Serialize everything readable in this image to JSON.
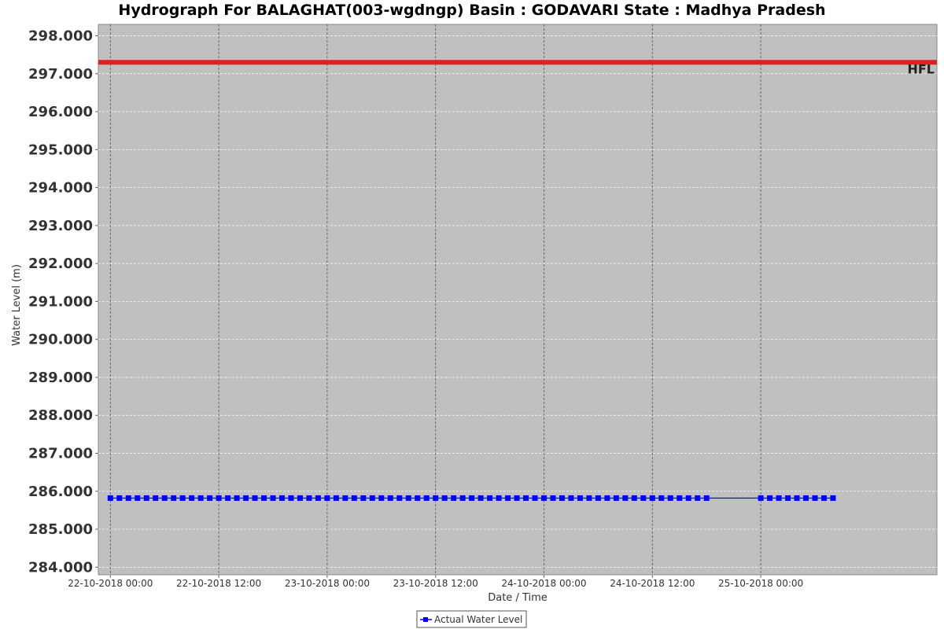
{
  "chart_data": {
    "type": "line",
    "title": "Hydrograph For BALAGHAT(003-wgdngp) Basin : GODAVARI State : Madhya Pradesh",
    "xlabel": "Date / Time",
    "ylabel": "Water Level (m)",
    "ylim": [
      283.8,
      298.3
    ],
    "y_ticks": [
      "284.000",
      "285.000",
      "286.000",
      "287.000",
      "288.000",
      "289.000",
      "290.000",
      "291.000",
      "292.000",
      "293.000",
      "294.000",
      "295.000",
      "296.000",
      "297.000",
      "298.000"
    ],
    "xlim": [
      "2018-10-21T22:40",
      "2018-10-25T19:30"
    ],
    "x_ticks": [
      {
        "label": "22-10-2018 00:00",
        "t": "2018-10-22T00:00"
      },
      {
        "label": "22-10-2018 12:00",
        "t": "2018-10-22T12:00"
      },
      {
        "label": "23-10-2018 00:00",
        "t": "2018-10-23T00:00"
      },
      {
        "label": "23-10-2018 12:00",
        "t": "2018-10-23T12:00"
      },
      {
        "label": "24-10-2018 00:00",
        "t": "2018-10-24T00:00"
      },
      {
        "label": "24-10-2018 12:00",
        "t": "2018-10-24T12:00"
      },
      {
        "label": "25-10-2018 00:00",
        "t": "2018-10-25T00:00"
      }
    ],
    "grid": true,
    "legend_position": "bottom-center",
    "hfl": {
      "label": "HFL",
      "value": 297.3,
      "color": "#e02020"
    },
    "series": [
      {
        "name": "Actual Water Level",
        "color": "#0000ff",
        "marker": "square",
        "value": 285.82,
        "segments": [
          {
            "start": "2018-10-22T00:00",
            "end": "2018-10-24T18:00",
            "step_hours": 1
          },
          {
            "start": "2018-10-25T00:00",
            "end": "2018-10-25T08:00",
            "step_hours": 1
          }
        ]
      }
    ]
  }
}
